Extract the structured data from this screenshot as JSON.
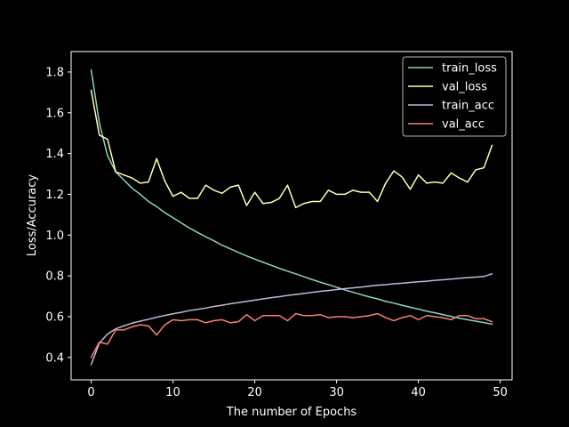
{
  "chart_data": {
    "type": "line",
    "title": "",
    "xlabel": "The number of Epochs",
    "ylabel": "Loss/Accuracy",
    "xlim": [
      -2.45,
      51.45
    ],
    "ylim": [
      0.29,
      1.9
    ],
    "xticks": [
      0,
      10,
      20,
      30,
      40,
      50
    ],
    "yticks": [
      0.4,
      0.6,
      0.8,
      1.0,
      1.2,
      1.4,
      1.6,
      1.8
    ],
    "xtick_labels": [
      "0",
      "10",
      "20",
      "30",
      "40",
      "50"
    ],
    "ytick_labels": [
      "0.4",
      "0.6",
      "0.8",
      "1.0",
      "1.2",
      "1.4",
      "1.6",
      "1.8"
    ],
    "grid": false,
    "legend_position": "top-right",
    "x": [
      0,
      1,
      2,
      3,
      4,
      5,
      6,
      7,
      8,
      9,
      10,
      11,
      12,
      13,
      14,
      15,
      16,
      17,
      18,
      19,
      20,
      21,
      22,
      23,
      24,
      25,
      26,
      27,
      28,
      29,
      30,
      31,
      32,
      33,
      34,
      35,
      36,
      37,
      38,
      39,
      40,
      41,
      42,
      43,
      44,
      45,
      46,
      47,
      48,
      49
    ],
    "series": [
      {
        "name": "train_loss",
        "color": "#8dd3c7",
        "values": [
          1.81,
          1.55,
          1.39,
          1.31,
          1.27,
          1.23,
          1.2,
          1.165,
          1.14,
          1.11,
          1.085,
          1.06,
          1.035,
          1.013,
          0.992,
          0.972,
          0.95,
          0.933,
          0.915,
          0.898,
          0.882,
          0.867,
          0.852,
          0.837,
          0.823,
          0.81,
          0.796,
          0.782,
          0.769,
          0.757,
          0.744,
          0.731,
          0.72,
          0.708,
          0.697,
          0.687,
          0.675,
          0.666,
          0.656,
          0.646,
          0.637,
          0.627,
          0.619,
          0.61,
          0.601,
          0.592,
          0.585,
          0.578,
          0.571,
          0.563
        ]
      },
      {
        "name": "val_loss",
        "color": "#ffffb3",
        "values": [
          1.71,
          1.49,
          1.47,
          1.31,
          1.295,
          1.28,
          1.255,
          1.26,
          1.375,
          1.265,
          1.19,
          1.21,
          1.18,
          1.18,
          1.245,
          1.22,
          1.205,
          1.235,
          1.245,
          1.145,
          1.21,
          1.155,
          1.16,
          1.18,
          1.245,
          1.135,
          1.155,
          1.165,
          1.165,
          1.22,
          1.2,
          1.2,
          1.22,
          1.21,
          1.21,
          1.165,
          1.255,
          1.315,
          1.285,
          1.225,
          1.295,
          1.255,
          1.26,
          1.255,
          1.305,
          1.28,
          1.26,
          1.32,
          1.33,
          1.44
        ]
      },
      {
        "name": "train_acc",
        "color": "#bebada",
        "values": [
          0.365,
          0.47,
          0.515,
          0.54,
          0.555,
          0.568,
          0.578,
          0.587,
          0.597,
          0.606,
          0.614,
          0.621,
          0.63,
          0.636,
          0.642,
          0.65,
          0.656,
          0.663,
          0.669,
          0.675,
          0.681,
          0.687,
          0.693,
          0.698,
          0.704,
          0.709,
          0.714,
          0.719,
          0.724,
          0.728,
          0.733,
          0.737,
          0.741,
          0.745,
          0.75,
          0.754,
          0.757,
          0.761,
          0.764,
          0.768,
          0.771,
          0.774,
          0.778,
          0.781,
          0.784,
          0.788,
          0.791,
          0.794,
          0.797,
          0.81
        ]
      },
      {
        "name": "val_acc",
        "color": "#fb8072",
        "values": [
          0.4,
          0.475,
          0.465,
          0.535,
          0.535,
          0.55,
          0.56,
          0.555,
          0.51,
          0.56,
          0.585,
          0.58,
          0.585,
          0.585,
          0.57,
          0.58,
          0.585,
          0.57,
          0.575,
          0.61,
          0.58,
          0.605,
          0.605,
          0.605,
          0.58,
          0.615,
          0.605,
          0.605,
          0.61,
          0.595,
          0.6,
          0.6,
          0.595,
          0.6,
          0.605,
          0.615,
          0.595,
          0.58,
          0.595,
          0.605,
          0.585,
          0.605,
          0.6,
          0.595,
          0.585,
          0.605,
          0.605,
          0.59,
          0.59,
          0.575
        ]
      }
    ]
  }
}
